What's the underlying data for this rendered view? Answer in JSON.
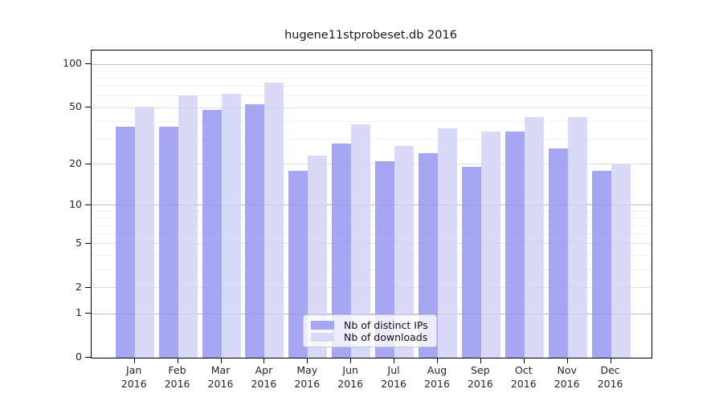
{
  "title": "hugene11stprobeset.db 2016",
  "chart_data": {
    "type": "bar",
    "title": "hugene11stprobeset.db 2016",
    "scale": "log1p",
    "grid": true,
    "legend_position": "bottom-center",
    "categories": [
      "Jan",
      "Feb",
      "Mar",
      "Apr",
      "May",
      "Jun",
      "Jul",
      "Aug",
      "Sep",
      "Oct",
      "Nov",
      "Dec"
    ],
    "year_label": "2016",
    "series": [
      {
        "name": "Nb of distinct IPs",
        "color": "#a6a6f2",
        "values": [
          37,
          37,
          48,
          53,
          18,
          28,
          21,
          24,
          19,
          34,
          26,
          18
        ]
      },
      {
        "name": "Nb of downloads",
        "color": "#d9d9f8",
        "values": [
          51,
          61,
          62,
          75,
          23,
          38,
          27,
          36,
          34,
          43,
          43,
          20
        ]
      }
    ],
    "y_ticks": [
      100,
      50,
      20,
      10,
      5,
      2,
      1,
      0
    ],
    "ylim": [
      0,
      124
    ],
    "colors": {
      "decade_gridline": "#c9c9c9",
      "mid_gridline": "#e6e6e6",
      "minor_gridline": "#f2f2f2",
      "axis": "#000000",
      "legend_border": "#cccccc"
    }
  }
}
